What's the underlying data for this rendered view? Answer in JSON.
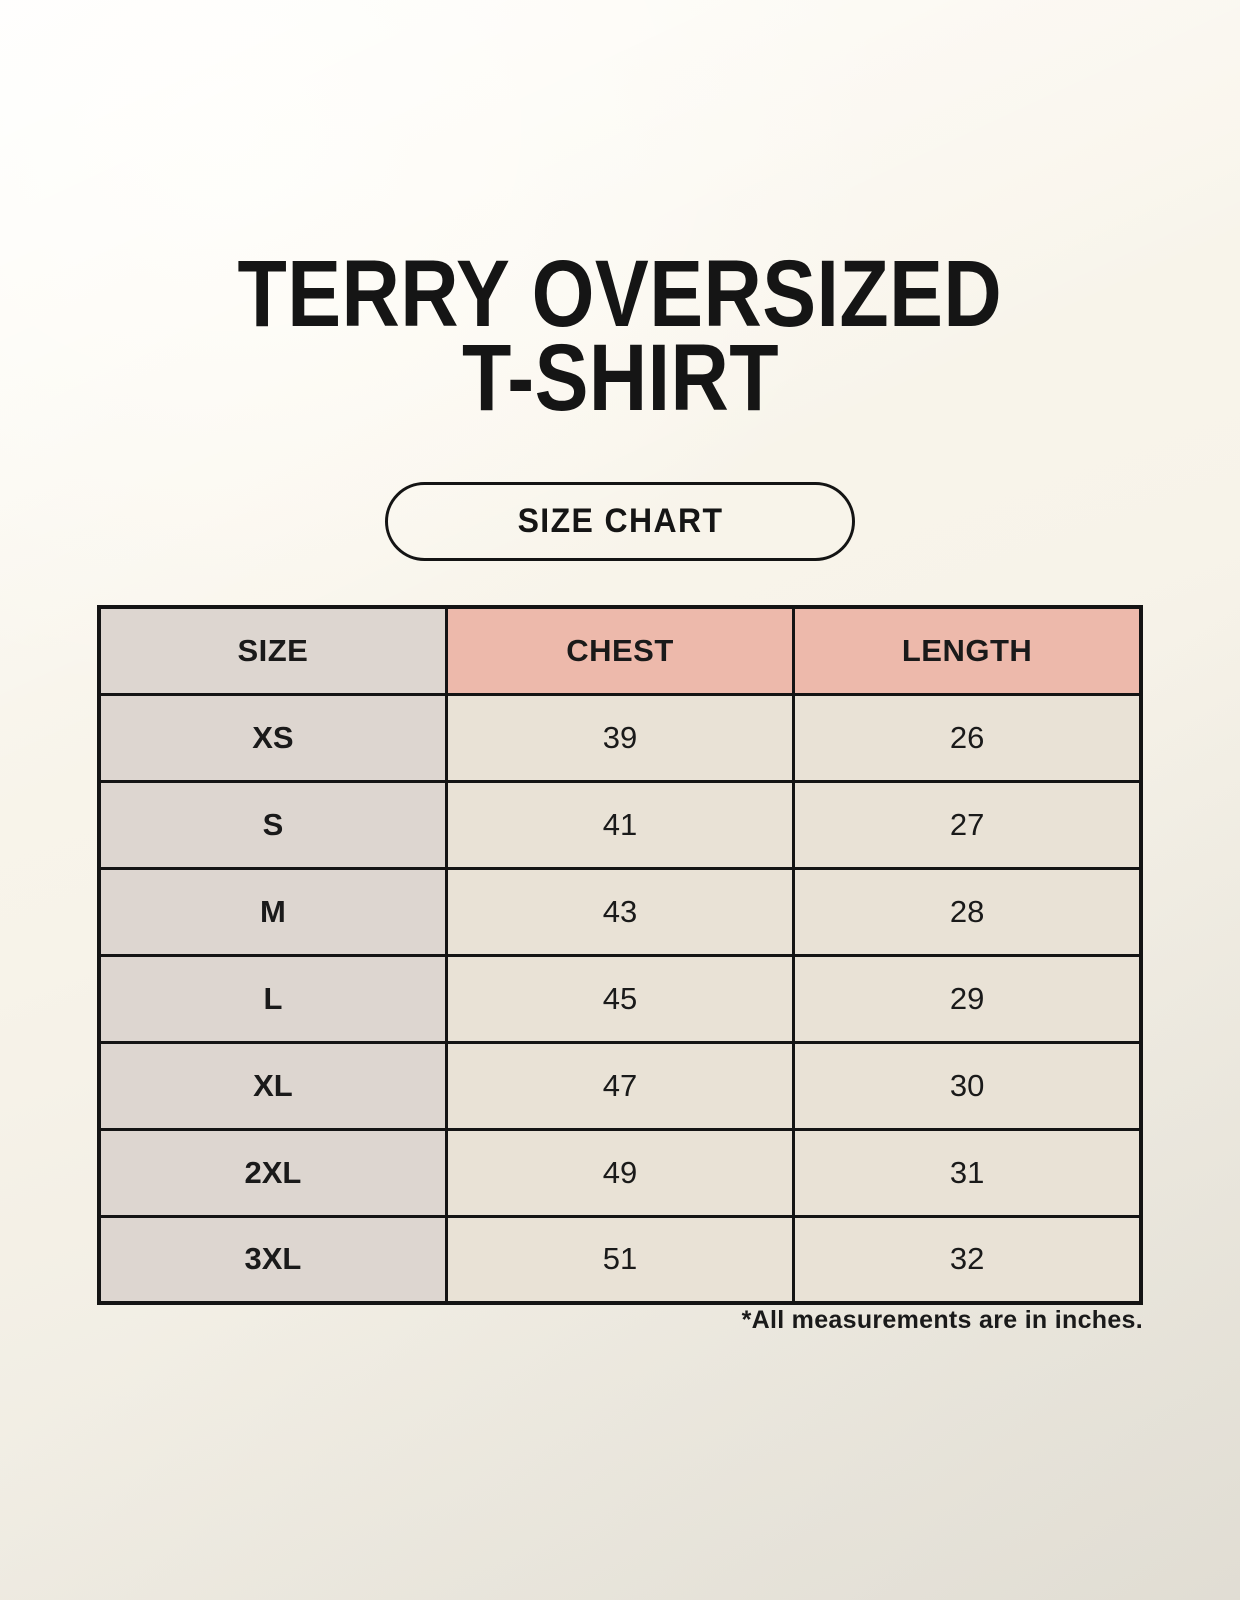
{
  "title": {
    "line1": "TERRY OVERSIZED",
    "line2": "T-SHIRT"
  },
  "size_chart_button": {
    "label": "SIZE CHART"
  },
  "footnote": "*All measurements are in inches.",
  "colors": {
    "page_background": "#f8f4ea",
    "header_accent_pink": "#edb9ab",
    "size_column_gray": "#ddd6d0",
    "value_cell_beige": "#e9e2d6",
    "table_border": "#141414",
    "text": "#1a1a1a"
  },
  "chart_data": {
    "type": "table",
    "title": "TERRY OVERSIZED T-SHIRT",
    "subtitle": "SIZE CHART",
    "units": "inches",
    "columns": [
      "SIZE",
      "CHEST",
      "LENGTH"
    ],
    "rows": [
      [
        "XS",
        39,
        26
      ],
      [
        "S",
        41,
        27
      ],
      [
        "M",
        43,
        28
      ],
      [
        "L",
        45,
        29
      ],
      [
        "XL",
        47,
        30
      ],
      [
        "2XL",
        49,
        31
      ],
      [
        "3XL",
        51,
        32
      ]
    ],
    "note": "*All measurements are in inches."
  }
}
